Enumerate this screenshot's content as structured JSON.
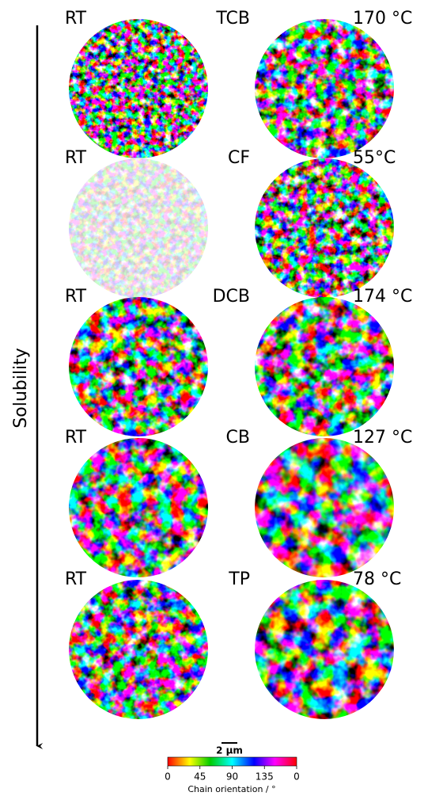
{
  "axis_label": "Solubility",
  "rows": [
    {
      "left_label": "RT",
      "solvent": "TCB",
      "temperature": "170 °C"
    },
    {
      "left_label": "RT",
      "solvent": "CF",
      "temperature": "55°C"
    },
    {
      "left_label": "RT",
      "solvent": "DCB",
      "temperature": "174 °C"
    },
    {
      "left_label": "RT",
      "solvent": "CB",
      "temperature": "127 °C"
    },
    {
      "left_label": "RT",
      "solvent": "TP",
      "temperature": "78 °C"
    }
  ],
  "scale_bar": "2 μm",
  "colorbar": {
    "label": "Chain orientation / °",
    "range": [
      0,
      180
    ],
    "ticks": [
      0,
      45,
      90,
      135,
      {
        "value": 180,
        "label": "0"
      }
    ]
  }
}
